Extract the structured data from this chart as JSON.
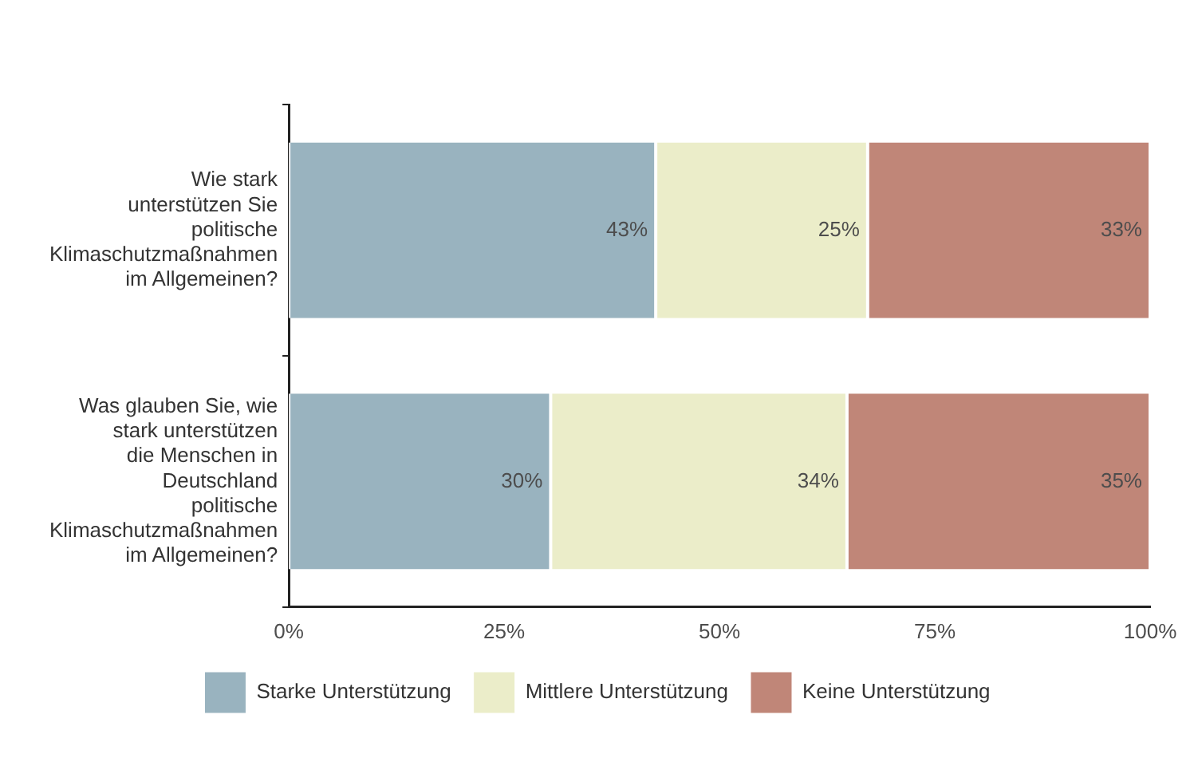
{
  "chart_data": {
    "type": "bar",
    "orientation": "horizontal",
    "stacked": true,
    "legend": "bottom",
    "grid": false,
    "categories": [
      "Wie stark unterstützen Sie politische Klimaschutzmaßnahmen im Allgemeinen?",
      "Was glauben Sie, wie stark unterstützen die Menschen in Deutschland politische Klimaschutzmaßnahmen im Allgemeinen?"
    ],
    "xlim": [
      0,
      100
    ],
    "xticks": [
      {
        "value": 0,
        "label": "0%"
      },
      {
        "value": 25,
        "label": "25%"
      },
      {
        "value": 50,
        "label": "50%"
      },
      {
        "value": 75,
        "label": "75%"
      },
      {
        "value": 100,
        "label": "100%"
      }
    ],
    "series": [
      {
        "name": "Starke Unterstützung",
        "color": "#99b3bf",
        "values": [
          42.6,
          30.4
        ],
        "value_labels": [
          "43%",
          "30%"
        ]
      },
      {
        "name": "Mittlere Unterstützung",
        "color": "#ebedc9",
        "values": [
          24.6,
          34.4
        ],
        "value_labels": [
          "25%",
          "34%"
        ]
      },
      {
        "name": "Keine Unterstützung",
        "color": "#c08678",
        "values": [
          32.8,
          35.2
        ],
        "value_labels": [
          "33%",
          "35%"
        ]
      }
    ]
  }
}
